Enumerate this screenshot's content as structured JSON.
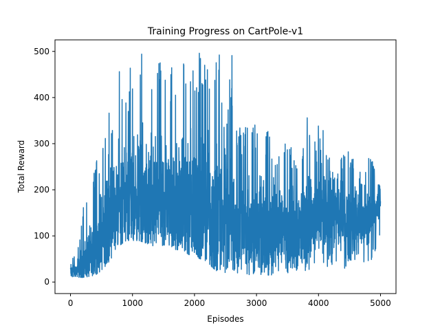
{
  "chart_data": {
    "type": "line",
    "title": "Training Progress on CartPole-v1",
    "xlabel": "Episodes",
    "ylabel": "Total Reward",
    "xlim": [
      -250,
      5250
    ],
    "ylim": [
      -25,
      525
    ],
    "x_ticks": [
      0,
      1000,
      2000,
      3000,
      4000,
      5000
    ],
    "y_ticks": [
      0,
      100,
      200,
      300,
      400,
      500
    ],
    "x_tick_labels": [
      "0",
      "1000",
      "2000",
      "3000",
      "4000",
      "5000"
    ],
    "y_tick_labels": [
      "0",
      "100",
      "200",
      "300",
      "400",
      "500"
    ],
    "grid": false,
    "legend": "none",
    "line_color": "#1f77b4",
    "series": [
      {
        "episodes": 5000,
        "x": [
          0,
          100,
          200,
          300,
          400,
          500,
          600,
          700,
          800,
          900,
          1000,
          1100,
          1200,
          1300,
          1400,
          1500,
          1600,
          1700,
          1800,
          1900,
          2000,
          2100,
          2200,
          2300,
          2400,
          2500,
          2600,
          2700,
          2800,
          2900,
          3000,
          3100,
          3200,
          3300,
          3400,
          3500,
          3600,
          3700,
          3800,
          3900,
          4000,
          4100,
          4200,
          4300,
          4400,
          4500,
          4600,
          4700,
          4800,
          4900,
          5000
        ],
        "upper": [
          55,
          60,
          170,
          200,
          260,
          290,
          440,
          330,
          475,
          420,
          500,
          500,
          500,
          500,
          500,
          500,
          450,
          500,
          500,
          500,
          500,
          500,
          480,
          500,
          500,
          320,
          500,
          350,
          330,
          370,
          340,
          330,
          340,
          310,
          300,
          310,
          290,
          280,
          360,
          345,
          340,
          330,
          250,
          260,
          280,
          300,
          265,
          230,
          290,
          250,
          220
        ],
        "lower": [
          12,
          10,
          10,
          12,
          15,
          25,
          40,
          60,
          80,
          90,
          90,
          90,
          85,
          80,
          75,
          80,
          80,
          70,
          70,
          60,
          55,
          50,
          45,
          30,
          20,
          15,
          15,
          20,
          20,
          15,
          20,
          15,
          15,
          15,
          15,
          20,
          20,
          25,
          25,
          30,
          35,
          30,
          35,
          35,
          30,
          30,
          30,
          25,
          30,
          60,
          95
        ],
        "typical": [
          25,
          25,
          35,
          50,
          70,
          100,
          140,
          170,
          180,
          190,
          190,
          185,
          185,
          180,
          180,
          175,
          175,
          170,
          170,
          165,
          165,
          160,
          155,
          150,
          145,
          140,
          135,
          125,
          120,
          115,
          115,
          115,
          115,
          115,
          120,
          120,
          120,
          120,
          125,
          130,
          140,
          140,
          135,
          135,
          130,
          130,
          130,
          125,
          130,
          150,
          170
        ]
      }
    ]
  }
}
